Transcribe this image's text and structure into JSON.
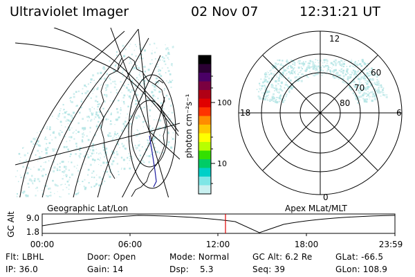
{
  "header": {
    "app_title": "Ultraviolet Imager",
    "date": "02 Nov 07",
    "time": "12:31:21 UT"
  },
  "geo_panel": {
    "caption": "Geographic Lat/Lon"
  },
  "polar_panel": {
    "caption": "Apex MLat/MLT",
    "mlt_labels": [
      "12",
      "18",
      "6",
      "0"
    ],
    "mlat_labels": [
      "60",
      "70",
      "80"
    ]
  },
  "colorbar": {
    "unit_label": "photon cm⁻²s⁻¹",
    "tick_labels": [
      "100",
      "10"
    ],
    "scale": "log",
    "colors": [
      "#000000",
      "#2b0033",
      "#4a0066",
      "#7a0040",
      "#b00015",
      "#e00000",
      "#ff3300",
      "#ff8c00",
      "#ffc800",
      "#ffff00",
      "#b8ff00",
      "#33e000",
      "#00cc66",
      "#00d0c8",
      "#7ee6e6",
      "#c8f0f0"
    ]
  },
  "altitude_plot": {
    "y_title": "GC Alt",
    "y_ticks": [
      "9.0",
      "1.8"
    ],
    "x_ticks": [
      "00:00",
      "06:00",
      "12:00",
      "18:00",
      "23:59"
    ],
    "current_time_marker": "12:31",
    "marker_color": "#e00000"
  },
  "status": {
    "row1": [
      {
        "label": "Flt:",
        "value": "LBHL"
      },
      {
        "label": "Door:",
        "value": "Open"
      },
      {
        "label": "Mode:",
        "value": "Normal"
      },
      {
        "label": "GC Alt:",
        "value": "6.2 Re"
      },
      {
        "label": "GLat:",
        "value": "-66.5"
      }
    ],
    "row2": [
      {
        "label": "IP:",
        "value": "36.0"
      },
      {
        "label": "Gain:",
        "value": "14"
      },
      {
        "label": "Dsp:",
        "value": "5.3"
      },
      {
        "label": "Seq:",
        "value": "39"
      },
      {
        "label": "GLon:",
        "value": "108.9"
      }
    ]
  },
  "colors": {
    "aurora_speckle": "#cfeeee",
    "aurora_speckle_alt": "#b8e6e6",
    "orbit_track": "#1a1aa0"
  }
}
